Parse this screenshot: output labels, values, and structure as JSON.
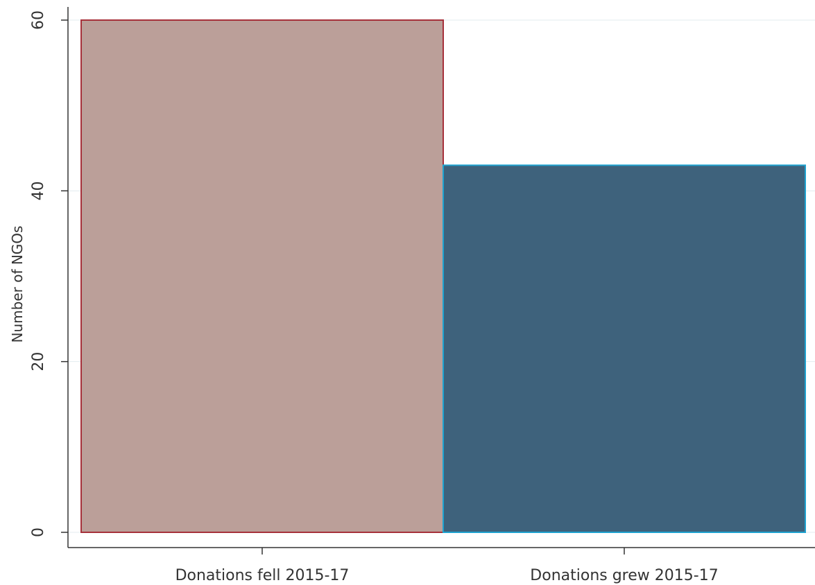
{
  "chart_data": {
    "type": "bar",
    "title": "",
    "xlabel": "",
    "ylabel": "Number of NGOs",
    "categories": [
      "Donations fell 2015-17",
      "Donations grew 2015-17"
    ],
    "values": [
      60,
      43
    ],
    "ylim": [
      0,
      60
    ],
    "yticks": [
      0,
      20,
      40,
      60
    ],
    "grid": true,
    "legend": "none",
    "colors": {
      "bar_fills": [
        "#bb9f99",
        "#3e627c"
      ],
      "bar_strokes": [
        "#a6303a",
        "#1fa3d0"
      ],
      "gridline": "#e3ebef",
      "axis": "#333333"
    }
  }
}
